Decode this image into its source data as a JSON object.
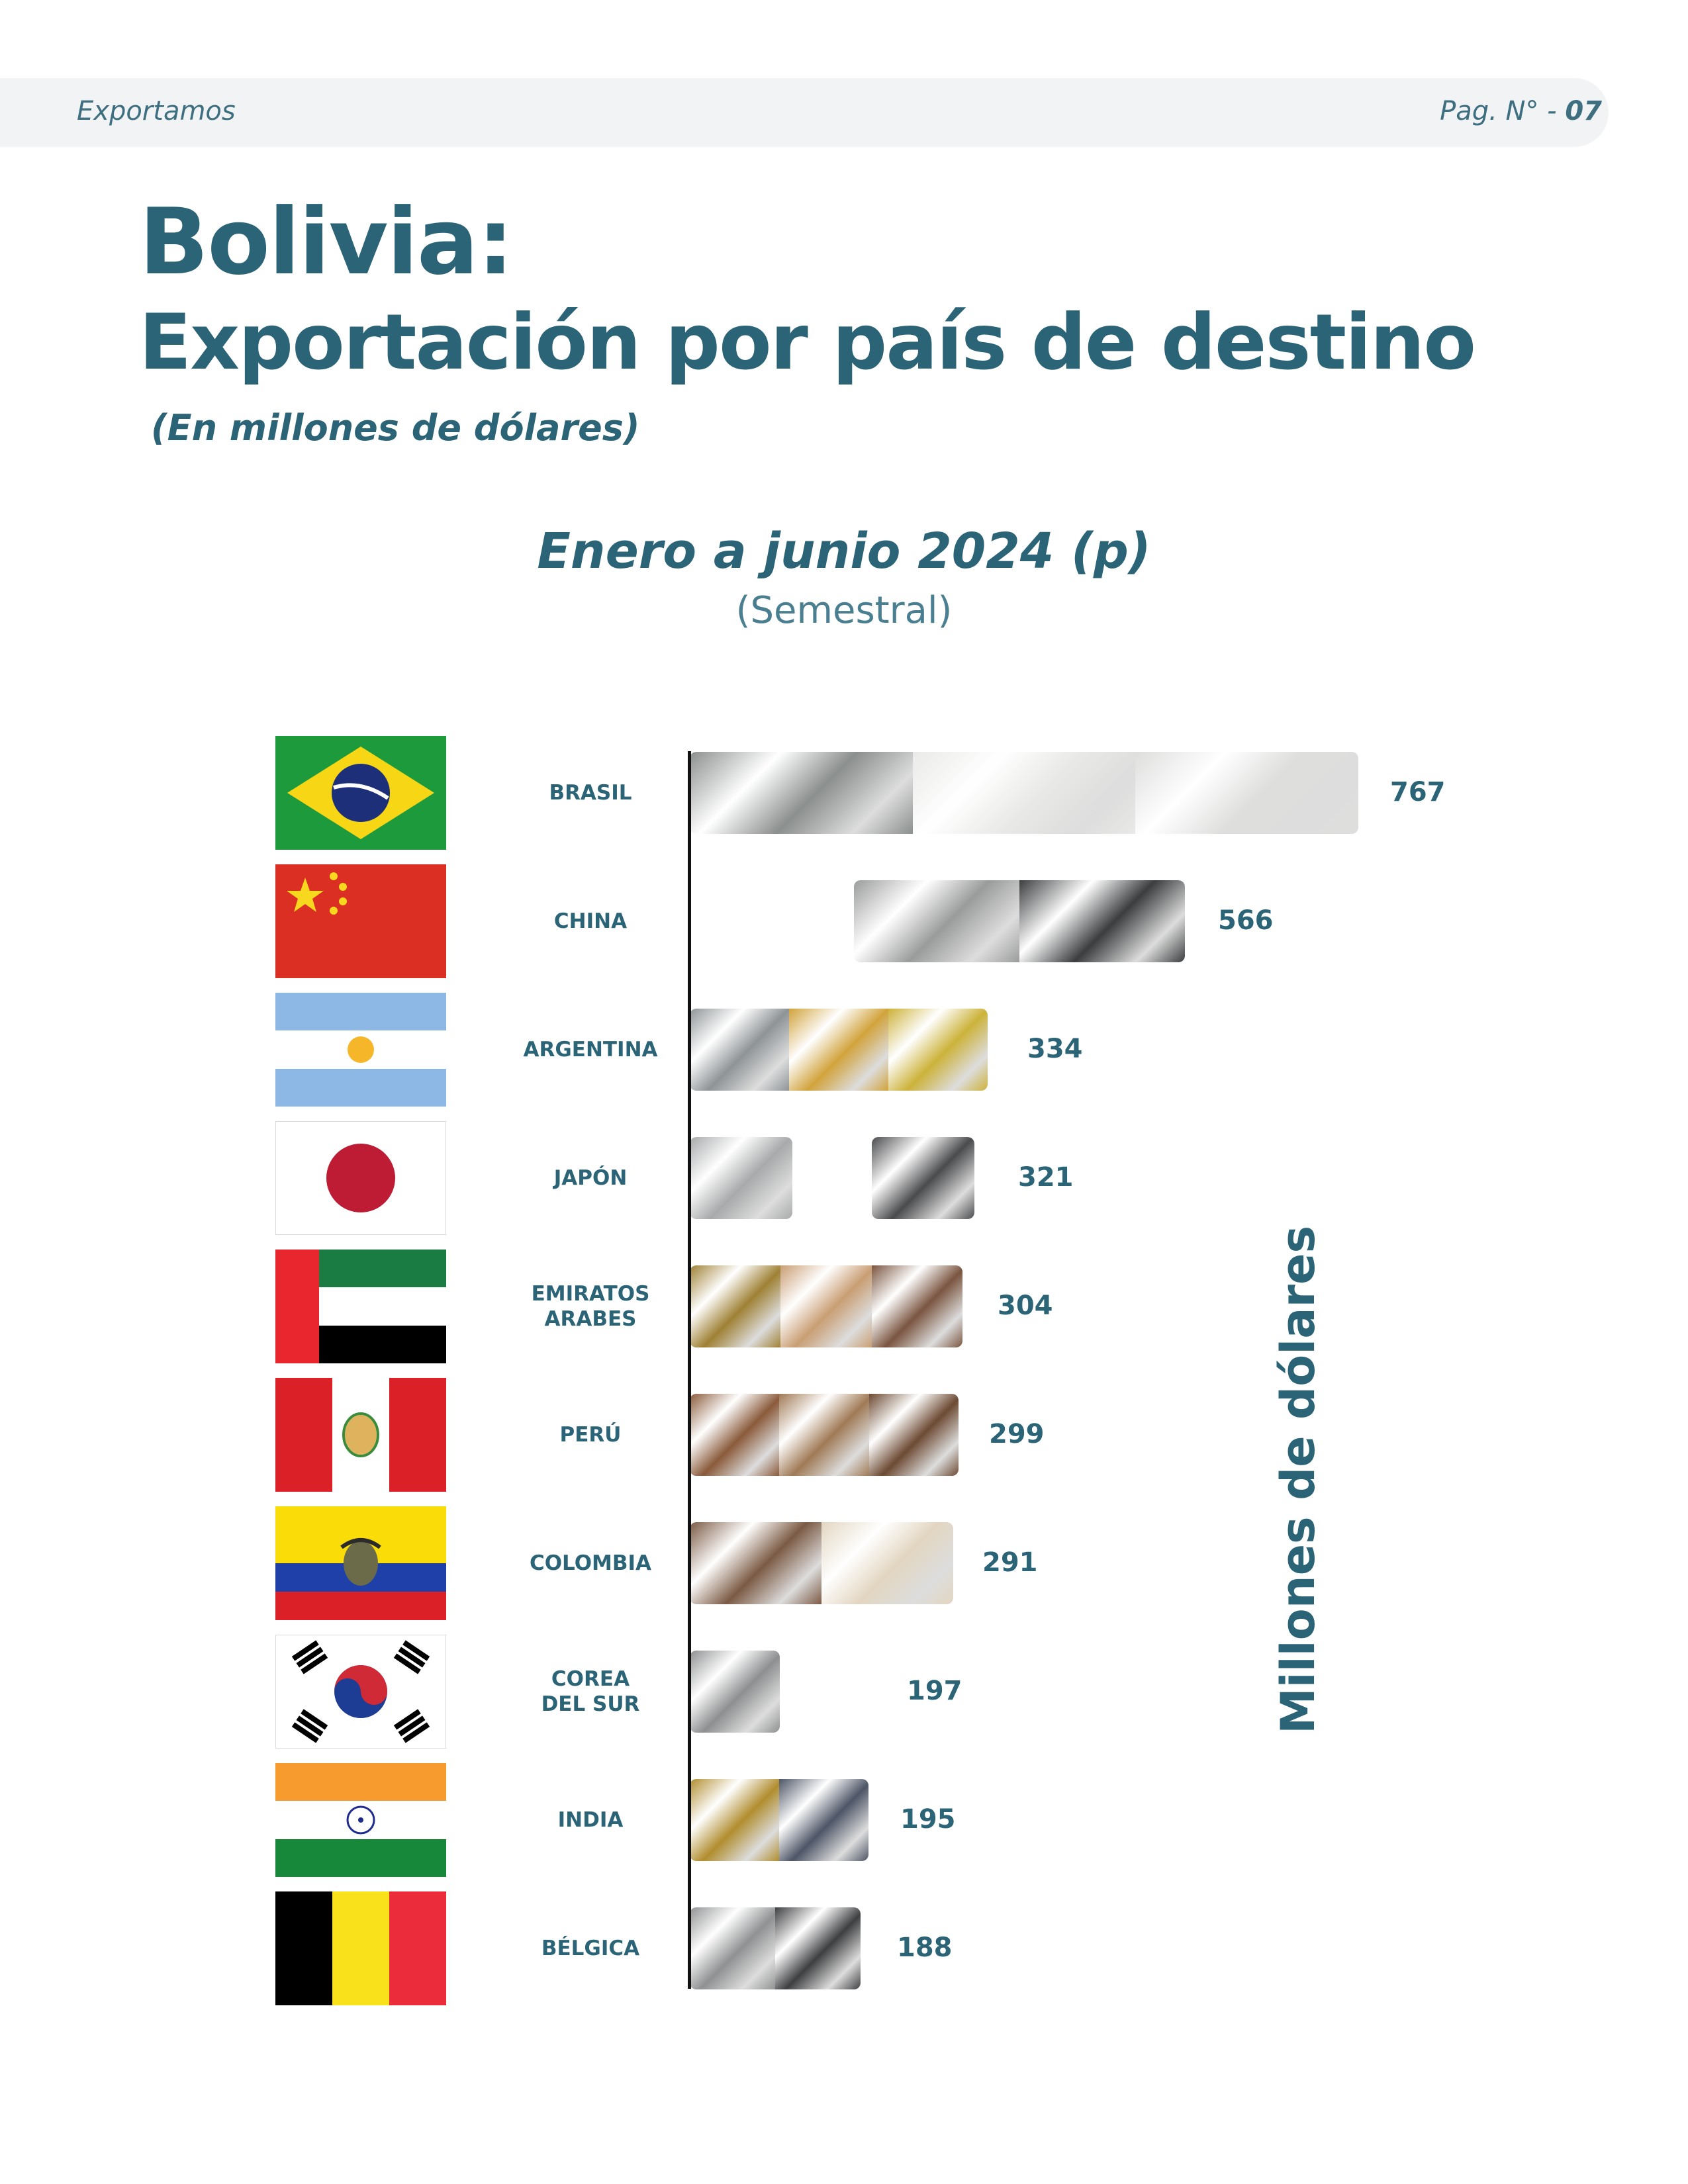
{
  "header": {
    "left": "Exportamos",
    "right_prefix": "Pag. N° - ",
    "right_page": "07"
  },
  "title_line1": "Bolivia:",
  "title_line2": "Exportación por país de destino",
  "subtitle": "(En millones de dólares)",
  "period": "Enero a junio 2024 (p)",
  "period_note": "(Semestral)",
  "chart_data": {
    "type": "bar",
    "orientation": "horizontal",
    "categories": [
      "BRASIL",
      "CHINA",
      "ARGENTINA",
      "JAPÓN",
      "EMIRATOS ARABES",
      "PERÚ",
      "COLOMBIA",
      "COREA DEL SUR",
      "INDIA",
      "BÉLGICA"
    ],
    "values": [
      767,
      566,
      334,
      321,
      304,
      299,
      291,
      197,
      195,
      188
    ],
    "xlabel": "",
    "ylabel": "Millones de dólares",
    "grid": false,
    "legend": "none"
  },
  "categories_display": [
    [
      "BRASIL"
    ],
    [
      "CHINA"
    ],
    [
      "ARGENTINA"
    ],
    [
      "JAPÓN"
    ],
    [
      "EMIRATOS",
      "ARABES"
    ],
    [
      "PERÚ"
    ],
    [
      "COLOMBIA"
    ],
    [
      "COREA",
      "DEL SUR"
    ],
    [
      "INDIA"
    ],
    [
      "BÉLGICA"
    ]
  ],
  "flags": [
    "brazil-flag",
    "china-flag",
    "argentina-flag",
    "japan-flag",
    "uae-flag",
    "peru-flag",
    "colombia-flag",
    "south-korea-flag",
    "india-flag",
    "belgium-flag"
  ],
  "colors": {
    "brand": "#2b6377",
    "axis": "#111111"
  }
}
